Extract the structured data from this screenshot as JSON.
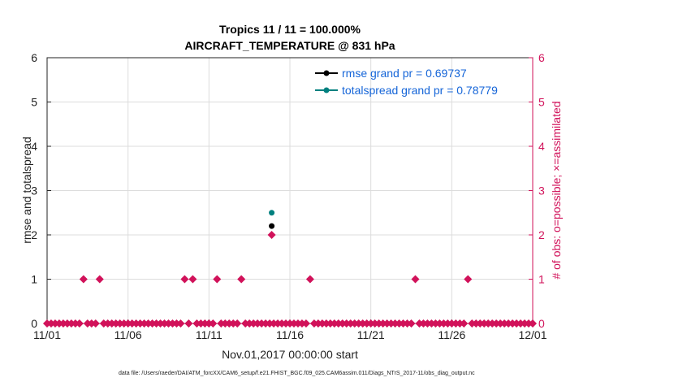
{
  "chart_data": {
    "type": "scatter",
    "title": [
      "Tropics 11 / 11 = 100.000%",
      "AIRCRAFT_TEMPERATURE @ 831 hPa"
    ],
    "xlabel": "Nov.01,2017 00:00:00 start",
    "ylabel": "rmse and totalspread",
    "ylabel_right": "# of obs: o=possible; ×=assimilated",
    "footer": "data file: /Users/raeder/DAI/ATM_forcXX/CAM6_setup/f.e21.FHIST_BGC.f09_025.CAM6assim.011/Diags_NTrS_2017-11/obs_diag_output.nc",
    "xlim": [
      0,
      30
    ],
    "ylim": [
      0,
      6
    ],
    "ylim_right": [
      0,
      6
    ],
    "x_ticks": [
      0,
      5,
      10,
      15,
      20,
      25,
      30
    ],
    "x_tick_labels": [
      "11/01",
      "11/06",
      "11/11",
      "11/16",
      "11/21",
      "11/26",
      "12/01"
    ],
    "y_ticks": [
      0,
      1,
      2,
      3,
      4,
      5,
      6
    ],
    "grid": true,
    "legend_position": "top-right",
    "colors": {
      "rmse": "#000000",
      "spread": "#00807f",
      "obs": "#d1125a",
      "legend_text": "#1565d8"
    },
    "series": [
      {
        "name": "rmse grand pr = 0.69737",
        "marker": "circle",
        "x": [
          13.875
        ],
        "y": [
          2.2
        ]
      },
      {
        "name": "totalspread grand pr = 0.78779",
        "marker": "circle",
        "x": [
          13.875
        ],
        "y": [
          2.5
        ]
      }
    ],
    "obs_count": {
      "interval_days": 0.25,
      "nonzero": [
        {
          "x": 2.25,
          "y": 1
        },
        {
          "x": 3.25,
          "y": 1
        },
        {
          "x": 8.5,
          "y": 1
        },
        {
          "x": 9.0,
          "y": 1
        },
        {
          "x": 10.5,
          "y": 1
        },
        {
          "x": 12.0,
          "y": 1
        },
        {
          "x": 13.875,
          "y": 2
        },
        {
          "x": 16.25,
          "y": 1
        },
        {
          "x": 22.75,
          "y": 1
        },
        {
          "x": 26.0,
          "y": 1
        }
      ]
    }
  }
}
